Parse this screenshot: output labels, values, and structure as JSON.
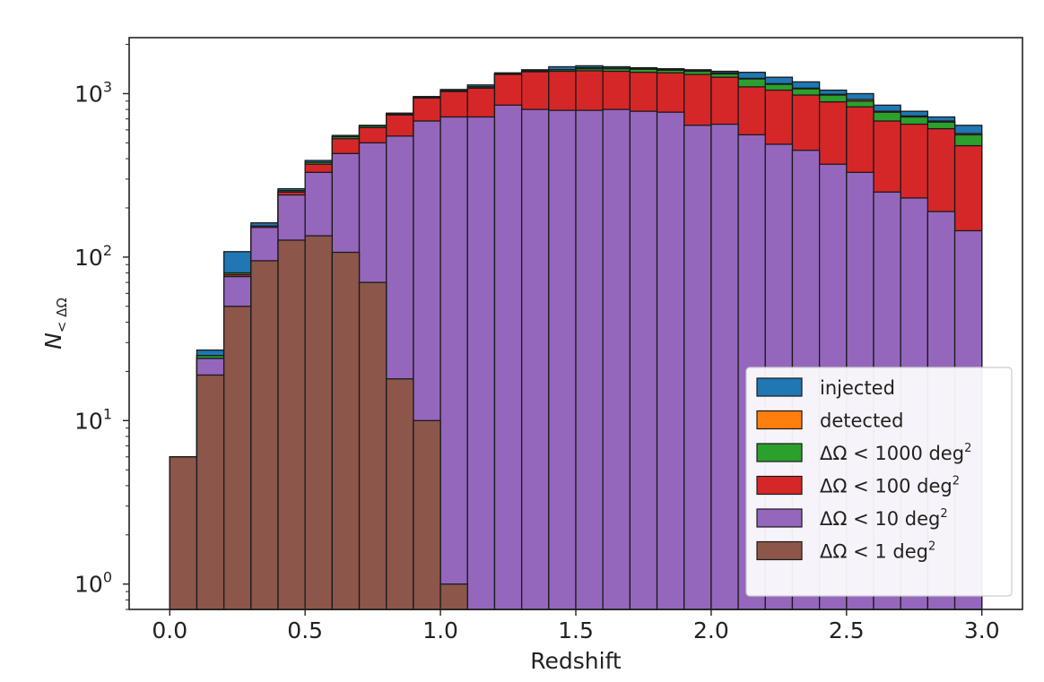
{
  "chart_data": {
    "type": "bar",
    "stacked": false,
    "overlay": true,
    "xlabel": "Redshift",
    "ylabel_main": "N",
    "ylabel_sub": "< ΔΩ",
    "yscale": "log",
    "xlim": [
      -0.15,
      3.15
    ],
    "ylim": [
      0.7,
      2200
    ],
    "bin_width": 0.1,
    "x_bin_starts": [
      0.0,
      0.1,
      0.2,
      0.3,
      0.4,
      0.5,
      0.6,
      0.7,
      0.8,
      0.9,
      1.0,
      1.1,
      1.2,
      1.3,
      1.4,
      1.5,
      1.6,
      1.7,
      1.8,
      1.9,
      2.0,
      2.1,
      2.2,
      2.3,
      2.4,
      2.5,
      2.6,
      2.7,
      2.8,
      2.9
    ],
    "x_ticks": [
      0.0,
      0.5,
      1.0,
      1.5,
      2.0,
      2.5,
      3.0
    ],
    "x_tick_labels": [
      "0.0",
      "0.5",
      "1.0",
      "1.5",
      "2.0",
      "2.5",
      "3.0"
    ],
    "y_ticks": [
      1,
      10,
      100,
      1000
    ],
    "y_tick_labels": [
      {
        "base": "10",
        "exp": "0"
      },
      {
        "base": "10",
        "exp": "1"
      },
      {
        "base": "10",
        "exp": "2"
      },
      {
        "base": "10",
        "exp": "3"
      }
    ],
    "legend_position": "lower-right",
    "series": [
      {
        "name": "injected",
        "color": "#1f77b4",
        "values": [
          6,
          27,
          108,
          162,
          262,
          390,
          555,
          640,
          760,
          960,
          1060,
          1130,
          1340,
          1400,
          1460,
          1480,
          1460,
          1440,
          1420,
          1400,
          1370,
          1350,
          1260,
          1180,
          1050,
          1000,
          850,
          780,
          720,
          640
        ]
      },
      {
        "name": "detected",
        "color": "#ff7f0e",
        "values": [
          6,
          25,
          80,
          155,
          255,
          380,
          545,
          635,
          750,
          950,
          1040,
          1100,
          1320,
          1380,
          1400,
          1440,
          1430,
          1420,
          1400,
          1380,
          1340,
          1240,
          1150,
          1080,
          990,
          920,
          780,
          730,
          680,
          570
        ]
      },
      {
        "name": "ΔΩ < 1000 deg²",
        "color": "#2ca02c",
        "values": [
          6,
          25,
          80,
          155,
          255,
          380,
          545,
          635,
          750,
          950,
          1040,
          1100,
          1320,
          1380,
          1400,
          1420,
          1420,
          1410,
          1390,
          1370,
          1320,
          1230,
          1140,
          1070,
          980,
          900,
          770,
          720,
          670,
          560
        ]
      },
      {
        "name": "ΔΩ < 100 deg²",
        "color": "#d62728",
        "values": [
          6,
          24,
          78,
          155,
          250,
          370,
          530,
          620,
          740,
          940,
          1030,
          1080,
          1310,
          1360,
          1370,
          1380,
          1370,
          1350,
          1340,
          1310,
          1260,
          1100,
          1050,
          980,
          890,
          830,
          680,
          650,
          610,
          480
        ]
      },
      {
        "name": "ΔΩ < 10 deg²",
        "color": "#9467bd",
        "values": [
          6,
          24,
          76,
          152,
          240,
          330,
          430,
          500,
          550,
          680,
          720,
          720,
          850,
          800,
          790,
          790,
          800,
          780,
          770,
          640,
          650,
          560,
          490,
          450,
          370,
          330,
          250,
          230,
          190,
          145
        ]
      },
      {
        "name": "ΔΩ < 1 deg²",
        "color": "#8c564b",
        "values": [
          6,
          19,
          50,
          95,
          127,
          135,
          107,
          70,
          18,
          10,
          1,
          0,
          0,
          0,
          0,
          0,
          0,
          0,
          0,
          0,
          0,
          0,
          0,
          0,
          0,
          0,
          0,
          0,
          0,
          0
        ]
      }
    ],
    "legend": [
      {
        "label": "injected",
        "color": "#1f77b4"
      },
      {
        "label": "detected",
        "color": "#ff7f0e"
      },
      {
        "label": "ΔΩ < 1000 deg",
        "sup": "2",
        "color": "#2ca02c"
      },
      {
        "label": "ΔΩ < 100 deg",
        "sup": "2",
        "color": "#d62728"
      },
      {
        "label": "ΔΩ < 10 deg",
        "sup": "2",
        "color": "#9467bd"
      },
      {
        "label": "ΔΩ < 1 deg",
        "sup": "2",
        "color": "#8c564b"
      }
    ]
  }
}
